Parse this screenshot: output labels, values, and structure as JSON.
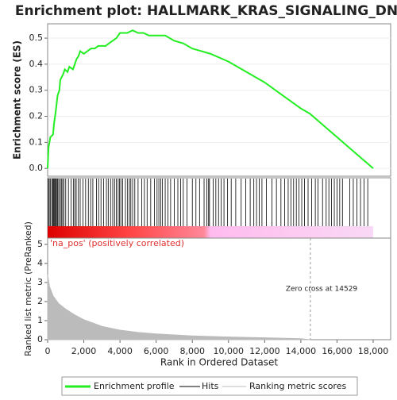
{
  "chart_data": [
    {
      "type": "line",
      "title": "Enrichment plot: HALLMARK_KRAS_SIGNALING_DN",
      "ylabel": "Enrichment score (ES)",
      "x": [
        0,
        50,
        150,
        300,
        350,
        450,
        550,
        650,
        700,
        850,
        950,
        1100,
        1200,
        1400,
        1500,
        1600,
        1700,
        1800,
        2000,
        2200,
        2400,
        2600,
        2800,
        3000,
        3200,
        3400,
        3600,
        3800,
        4000,
        4200,
        4400,
        4700,
        5000,
        5300,
        5600,
        6000,
        6200,
        6500,
        7000,
        7500,
        8000,
        8500,
        9000,
        10000,
        11000,
        12000,
        13000,
        14000,
        14500,
        15000,
        16000,
        17000,
        18000
      ],
      "series": [
        {
          "name": "Enrichment profile",
          "color": "#22ee22",
          "values": [
            0,
            0.08,
            0.12,
            0.13,
            0.17,
            0.22,
            0.28,
            0.3,
            0.34,
            0.36,
            0.38,
            0.37,
            0.39,
            0.38,
            0.4,
            0.42,
            0.43,
            0.45,
            0.44,
            0.45,
            0.46,
            0.46,
            0.47,
            0.47,
            0.47,
            0.48,
            0.49,
            0.5,
            0.52,
            0.52,
            0.52,
            0.53,
            0.52,
            0.52,
            0.51,
            0.51,
            0.51,
            0.51,
            0.49,
            0.48,
            0.46,
            0.45,
            0.44,
            0.41,
            0.37,
            0.33,
            0.28,
            0.23,
            0.21,
            0.18,
            0.12,
            0.06,
            0
          ]
        }
      ],
      "xlim": [
        0,
        18966
      ],
      "ylim": [
        -0.03,
        0.555
      ],
      "yticks": [
        {
          "value": 0,
          "label": "0.0"
        },
        0.1,
        0.2,
        0.3,
        0.4,
        0.5
      ],
      "grid": true
    },
    {
      "type": "hits",
      "series_name": "Hits",
      "color": "#000000",
      "x": [
        40,
        90,
        160,
        230,
        280,
        330,
        380,
        420,
        470,
        520,
        560,
        620,
        700,
        760,
        830,
        900,
        1000,
        1150,
        1300,
        1420,
        1500,
        1580,
        1700,
        1800,
        1950,
        2100,
        2250,
        2380,
        2500,
        2700,
        2820,
        2950,
        3100,
        3250,
        3350,
        3480,
        3600,
        3700,
        3800,
        3900,
        3980,
        4050,
        4150,
        4300,
        4420,
        4520,
        4600,
        4700,
        4820,
        5000,
        5200,
        5350,
        5500,
        5700,
        5900,
        6050,
        6150,
        6250,
        6350,
        6500,
        6650,
        6800,
        7000,
        7200,
        7350,
        7500,
        7700,
        8000,
        8200,
        8400,
        8650,
        8800,
        8900,
        8950,
        9150,
        9300,
        9450,
        9600,
        9750,
        9950,
        10150,
        10400,
        10700,
        10950,
        11200,
        11400,
        11550,
        11700,
        11850,
        12100,
        12400,
        12650,
        12900,
        13100,
        13300,
        13450,
        13600,
        13750,
        13900,
        14050,
        14200,
        14400,
        14600,
        14800,
        14950,
        15200,
        15400,
        15550,
        15700,
        15850,
        16000,
        16150,
        16300,
        16700,
        16900,
        17100,
        17300,
        17500,
        17700
      ],
      "xlim": [
        0,
        18966
      ]
    },
    {
      "type": "area",
      "ylabel": "Ranked list metric (PreRanked)",
      "xlabel": "Rank in Ordered Dataset",
      "x": [
        0,
        100,
        300,
        600,
        1000,
        1500,
        2000,
        3000,
        4000,
        5000,
        6000,
        8000,
        10000,
        12000,
        14000,
        14529
      ],
      "series": [
        {
          "name": "Ranking metric scores",
          "color": "#bbbbbb",
          "values": [
            3.4,
            2.8,
            2.3,
            1.9,
            1.6,
            1.3,
            1.05,
            0.7,
            0.5,
            0.38,
            0.3,
            0.2,
            0.14,
            0.1,
            0.05,
            0
          ]
        }
      ],
      "xlim": [
        0,
        18966
      ],
      "ylim": [
        0,
        5.33
      ],
      "yticks": [
        0,
        1,
        2,
        3,
        4,
        5
      ],
      "xticks": [
        0,
        {
          "value": 2000,
          "label": "2,000"
        },
        {
          "value": 4000,
          "label": "4,000"
        },
        {
          "value": 6000,
          "label": "6,000"
        },
        {
          "value": 8000,
          "label": "8,000"
        },
        {
          "value": 10000,
          "label": "10,000"
        },
        {
          "value": 12000,
          "label": "12,000"
        },
        {
          "value": 14000,
          "label": "14,000"
        },
        {
          "value": 16000,
          "label": "16,000"
        },
        {
          "value": 18000,
          "label": "18,000"
        }
      ],
      "zero_cross": 14529,
      "annotations": [
        "'na_pos' (positively correlated)",
        "Zero cross at 14529"
      ]
    }
  ]
}
